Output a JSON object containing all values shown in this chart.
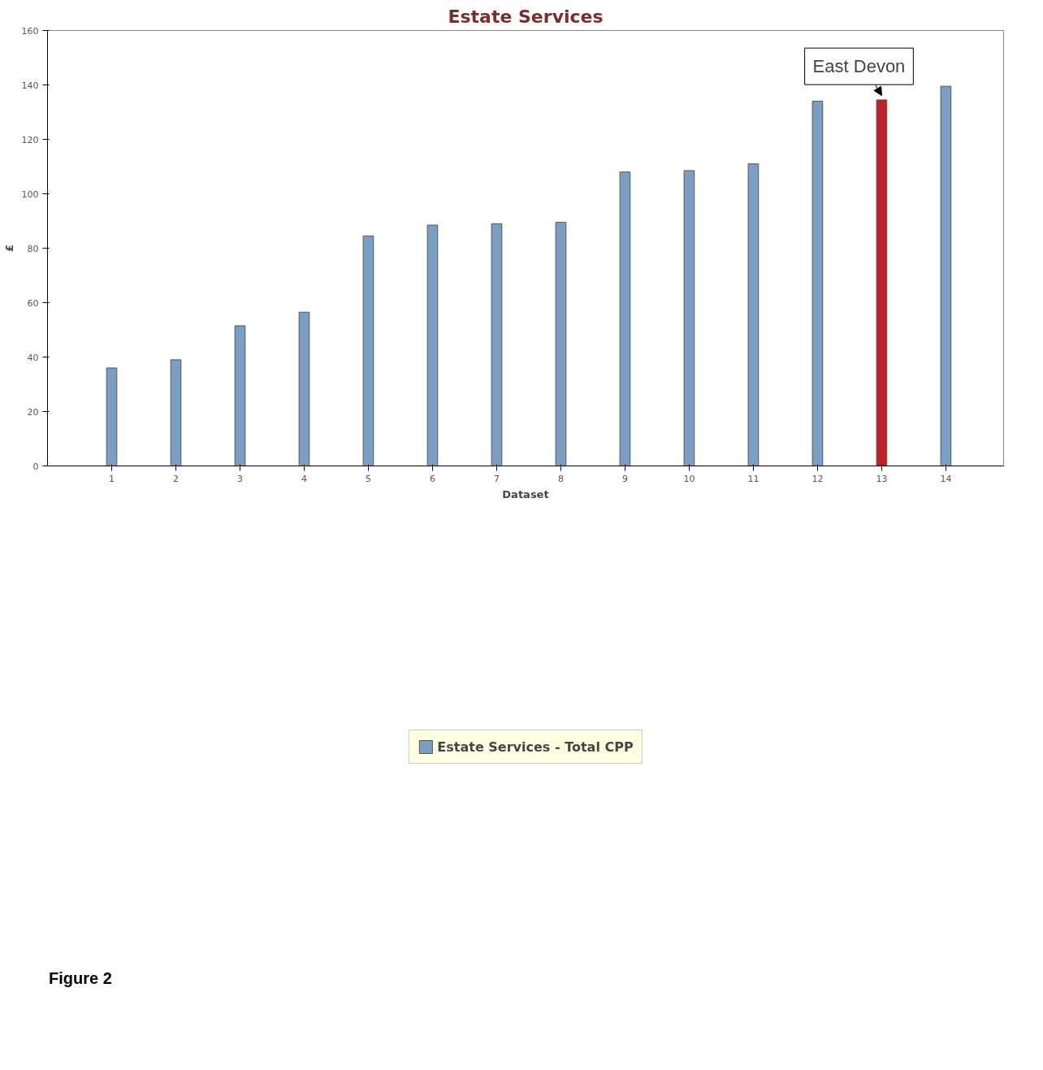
{
  "chart_data": {
    "type": "bar",
    "title": "Estate Services",
    "xlabel": "Dataset",
    "ylabel": "£",
    "categories": [
      "1",
      "2",
      "3",
      "4",
      "5",
      "6",
      "7",
      "8",
      "9",
      "10",
      "11",
      "12",
      "13",
      "14"
    ],
    "series": [
      {
        "name": "Estate Services - Total CPP",
        "color": "#7b9fc4",
        "colors": [
          null,
          null,
          null,
          null,
          null,
          null,
          null,
          null,
          null,
          null,
          null,
          null,
          "#c0202a",
          null
        ],
        "values": [
          36,
          39,
          51.5,
          56.5,
          84.5,
          88.5,
          89,
          89.5,
          108,
          108.5,
          111,
          134,
          134.5,
          139.5
        ]
      }
    ],
    "ylim": [
      0,
      160
    ],
    "yticks": [
      0,
      20,
      40,
      60,
      80,
      100,
      120,
      140,
      160
    ],
    "grid": false,
    "legend": "bottom",
    "annotations": [
      {
        "text": "East Devon",
        "x": "13",
        "y": 134.5
      },
      "Figure 2"
    ]
  }
}
